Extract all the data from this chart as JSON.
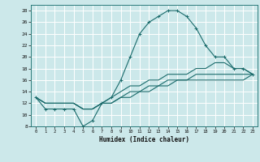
{
  "xlabel": "Humidex (Indice chaleur)",
  "bg_color": "#cce8ea",
  "grid_color": "#ffffff",
  "line_color": "#1a6b6b",
  "xlim": [
    -0.5,
    23.5
  ],
  "ylim": [
    8,
    29
  ],
  "xticks": [
    0,
    1,
    2,
    3,
    4,
    5,
    6,
    7,
    8,
    9,
    10,
    11,
    12,
    13,
    14,
    15,
    16,
    17,
    18,
    19,
    20,
    21,
    22,
    23
  ],
  "yticks": [
    8,
    10,
    12,
    14,
    16,
    18,
    20,
    22,
    24,
    26,
    28
  ],
  "curve1_x": [
    0,
    1,
    2,
    3,
    4,
    5,
    6,
    7,
    8,
    9,
    10,
    11,
    12,
    13,
    14,
    15,
    16,
    17,
    18,
    19,
    20,
    21,
    22,
    23
  ],
  "curve1_y": [
    13,
    11,
    11,
    11,
    11,
    8,
    9,
    12,
    13,
    16,
    20,
    24,
    26,
    27,
    28,
    28,
    27,
    25,
    22,
    20,
    20,
    18,
    18,
    17
  ],
  "curve2_x": [
    0,
    1,
    2,
    3,
    4,
    5,
    6,
    7,
    8,
    9,
    10,
    11,
    12,
    13,
    14,
    15,
    16,
    17,
    18,
    19,
    20,
    21,
    22,
    23
  ],
  "curve2_y": [
    13,
    12,
    12,
    12,
    12,
    11,
    11,
    12,
    13,
    14,
    15,
    15,
    16,
    16,
    17,
    17,
    17,
    18,
    18,
    19,
    19,
    18,
    18,
    17
  ],
  "curve3_x": [
    0,
    1,
    2,
    3,
    4,
    5,
    6,
    7,
    8,
    9,
    10,
    11,
    12,
    13,
    14,
    15,
    16,
    17,
    18,
    19,
    20,
    21,
    22,
    23
  ],
  "curve3_y": [
    13,
    12,
    12,
    12,
    12,
    11,
    11,
    12,
    12,
    13,
    14,
    14,
    15,
    15,
    16,
    16,
    16,
    17,
    17,
    17,
    17,
    17,
    17,
    17
  ],
  "curve4_x": [
    0,
    1,
    2,
    3,
    4,
    5,
    6,
    7,
    8,
    9,
    10,
    11,
    12,
    13,
    14,
    15,
    16,
    17,
    18,
    19,
    20,
    21,
    22,
    23
  ],
  "curve4_y": [
    13,
    12,
    12,
    12,
    12,
    11,
    11,
    12,
    12,
    13,
    13,
    14,
    14,
    15,
    15,
    16,
    16,
    16,
    16,
    16,
    16,
    16,
    16,
    17
  ]
}
